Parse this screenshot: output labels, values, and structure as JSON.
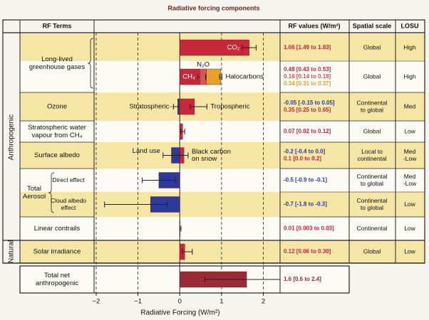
{
  "chart_data": {
    "type": "bar",
    "orientation": "horizontal",
    "title": "Radiative forcing components",
    "headers": {
      "terms": "RF Terms",
      "values": "RF values (W/m²)",
      "scale": "Spatial scale",
      "losu": "LOSU"
    },
    "xlabel": "Radiative Forcing (W/m²)",
    "xlim": [
      -2.05,
      2.4
    ],
    "xticks": [
      {
        "value": -2,
        "label": "−2"
      },
      {
        "value": -1,
        "label": "−1"
      },
      0,
      1,
      2
    ],
    "grid": true,
    "sections": [
      {
        "label": "Anthropogenic",
        "rows": [
          {
            "term": [
              "Long-lived",
              "greenhouse gases"
            ],
            "lines": [
              {
                "items": [
                  {
                    "name": "CO₂",
                    "value": 1.66,
                    "low": 1.49,
                    "high": 1.83,
                    "color": "#c8283a",
                    "rf": "1.66 [1.49 to 1.83]"
                  }
                ],
                "scale": "Global",
                "losu": "High"
              },
              {
                "stacked": true,
                "items": [
                  {
                    "name": "CH₄",
                    "value": 0.48,
                    "low": 0.43,
                    "high": 0.53,
                    "color": "#c8283a",
                    "rf": "0.48 [0.43 to 0.53]"
                  },
                  {
                    "name": "N₂O",
                    "value": 0.16,
                    "low": 0.14,
                    "high": 0.18,
                    "color": "#d9525c",
                    "rf": "0.16 [0.14 to 0.18]"
                  },
                  {
                    "name": "Halocarbons",
                    "value": 0.34,
                    "low": 0.31,
                    "high": 0.37,
                    "color": "#e6a128",
                    "rf": "0.34 [0.31 to 0.37]"
                  }
                ],
                "scale": "Global",
                "losu": "High"
              }
            ]
          },
          {
            "term": "Ozone",
            "lines": [
              {
                "items": [
                  {
                    "name": "Stratospheric",
                    "value": -0.05,
                    "low": -0.15,
                    "high": 0.05,
                    "color": "#2b3a9c",
                    "rf": "-0.05 [-0.15 to 0.05]"
                  },
                  {
                    "name": "Tropospheric",
                    "value": 0.35,
                    "low": 0.25,
                    "high": 0.65,
                    "color": "#c8283a",
                    "rf": "0.35 [0.25 to 0.65]"
                  }
                ],
                "scale": [
                  "Continental",
                  "to global"
                ],
                "losu": "Med"
              }
            ]
          },
          {
            "term": [
              "Stratospheric water",
              "vapour from CH₄"
            ],
            "lines": [
              {
                "items": [
                  {
                    "value": 0.07,
                    "low": 0.02,
                    "high": 0.12,
                    "color": "#c8283a",
                    "rf": "0.07 [0.02 to 0.12]"
                  }
                ],
                "scale": "Global",
                "losu": "Low"
              }
            ]
          },
          {
            "term": "Surface albedo",
            "lines": [
              {
                "items": [
                  {
                    "name": "Land use",
                    "value": -0.2,
                    "low": -0.4,
                    "high": 0.0,
                    "color": "#2b3a9c",
                    "rf": "-0.2 [-0.4 to 0.0]"
                  },
                  {
                    "name": [
                      "Black carbon",
                      "on snow"
                    ],
                    "value": 0.1,
                    "low": 0.0,
                    "high": 0.2,
                    "color": "#c8283a",
                    "rf": "0.1 [0.0 to 0.2]"
                  }
                ],
                "scale": [
                  "Local to",
                  "continental"
                ],
                "losu": [
                  "Med",
                  "-Low"
                ]
              }
            ]
          },
          {
            "term": [
              "Total",
              "Aerosol"
            ],
            "lines": [
              {
                "sub": "Direct effect",
                "items": [
                  {
                    "value": -0.5,
                    "low": -0.9,
                    "high": -0.1,
                    "color": "#2b3a9c",
                    "rf": "-0.5 [-0.9 to -0.1]"
                  }
                ],
                "scale": [
                  "Continental",
                  "to global"
                ],
                "losu": [
                  "Med",
                  "-Low"
                ]
              },
              {
                "sub": [
                  "Cloud albedo",
                  "effect"
                ],
                "items": [
                  {
                    "value": -0.7,
                    "low": -1.8,
                    "high": -0.3,
                    "color": "#2b3a9c",
                    "rf": "-0.7 [-1.8 to -0.3]"
                  }
                ],
                "scale": [
                  "Continental",
                  "to global"
                ],
                "losu": "Low"
              }
            ]
          },
          {
            "term": "Linear contrails",
            "lines": [
              {
                "items": [
                  {
                    "value": 0.01,
                    "low": 0.003,
                    "high": 0.03,
                    "color": "#c8283a",
                    "rf": "0.01 [0.003 to 0.03]"
                  }
                ],
                "scale": "Continental",
                "losu": "Low"
              }
            ]
          }
        ]
      },
      {
        "label": "Natural",
        "rows": [
          {
            "term": "Solar irradiance",
            "lines": [
              {
                "items": [
                  {
                    "value": 0.12,
                    "low": 0.06,
                    "high": 0.3,
                    "color": "#c8283a",
                    "rf": "0.12 [0.06 to 0.30]"
                  }
                ],
                "scale": "Global",
                "losu": "Low"
              }
            ]
          }
        ]
      },
      {
        "rows": [
          {
            "term": [
              "Total net",
              "anthropogenic"
            ],
            "lines": [
              {
                "items": [
                  {
                    "value": 1.6,
                    "low": 0.6,
                    "high": 2.4,
                    "color": "#9b2c36",
                    "rf": "1.6 [0.6 to 2.4]"
                  }
                ]
              }
            ]
          }
        ]
      }
    ]
  }
}
